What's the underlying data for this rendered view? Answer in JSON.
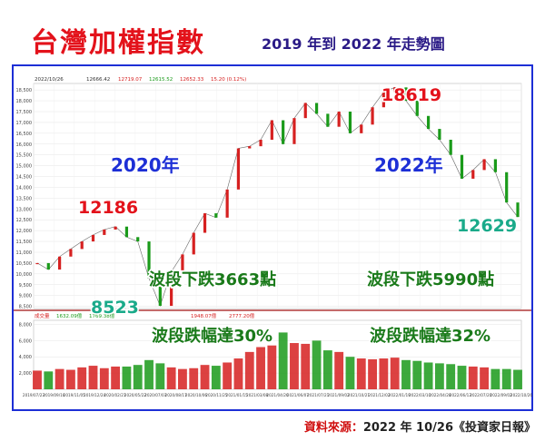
{
  "title": "台灣加權指數",
  "subtitle": "2019 年到 2022 年走勢圖",
  "source_label": "資料來源：",
  "source_value": "2022 年 10/26《投資家日報》",
  "chart_data": {
    "type": "line",
    "title": "台灣加權指數",
    "info_bar": [
      "2022/10/26",
      "12666.42",
      "12719.07",
      "12615.52",
      "12652.33",
      "15.20 (0.12%)"
    ],
    "volume_bar": [
      "成交量",
      "1632.09億",
      "1769.38億",
      "1948.07億",
      "2777.20億"
    ],
    "y_ticks": [
      "18,500",
      "18,000",
      "17,500",
      "17,000",
      "16,500",
      "16,000",
      "15,500",
      "15,000",
      "14,500",
      "14,000",
      "13,500",
      "13,000",
      "12,500",
      "12,000",
      "11,500",
      "11,000",
      "10,500",
      "10,000",
      "9,500",
      "9,000",
      "8,500"
    ],
    "ylim": [
      8400,
      18800
    ],
    "vol_ticks": [
      "8,000",
      "6,000",
      "4,000",
      "2,000"
    ],
    "vol_ylim": [
      0,
      8500
    ],
    "x_ticks": [
      "2019/07/23",
      "2019/09/16",
      "2019/11/05",
      "2019/12/24",
      "2020/02/21",
      "2020/05/22",
      "2020/07/03",
      "2020/08/17",
      "2020/10/06",
      "2020/11/25",
      "2021/01/15",
      "2021/03/08",
      "2021/04/26",
      "2021/06/07",
      "2021/07/21",
      "2021/09/02",
      "2021/10/21",
      "2021/12/02",
      "2022/01/19",
      "2022/03/10",
      "2022/04/28",
      "2022/06/13",
      "2022/07/20",
      "2022/09/02",
      "2022/10/26"
    ],
    "series": [
      {
        "x": [
          "2019/07/23",
          "2019/08/15",
          "2019/09/16",
          "2019/10/15",
          "2019/11/05",
          "2019/12/05",
          "2019/12/24",
          "2020/01/14",
          "2020/02/05",
          "2020/02/21",
          "2020/03/10",
          "2020/03/19",
          "2020/04/10",
          "2020/05/22",
          "2020/07/03",
          "2020/08/17",
          "2020/10/06",
          "2020/11/25",
          "2021/01/15",
          "2021/02/18",
          "2021/03/08",
          "2021/04/26",
          "2021/05/12",
          "2021/06/07",
          "2021/07/15",
          "2021/07/21",
          "2021/08/20",
          "2021/09/02",
          "2021/10/05",
          "2021/10/21",
          "2021/12/02",
          "2022/01/05",
          "2022/01/19",
          "2022/02/15",
          "2022/03/10",
          "2022/04/28",
          "2022/05/12",
          "2022/06/13",
          "2022/07/05",
          "2022/07/20",
          "2022/08/16",
          "2022/09/02",
          "2022/09/30",
          "2022/10/26"
        ],
        "values": [
          10500,
          10200,
          10800,
          11150,
          11500,
          11800,
          12050,
          12186,
          11700,
          11500,
          9800,
          8523,
          10100,
          10900,
          11900,
          12800,
          12600,
          13900,
          15800,
          15900,
          16200,
          17100,
          16000,
          17200,
          17900,
          17400,
          16800,
          17500,
          16500,
          16900,
          17700,
          18400,
          18619,
          18000,
          17300,
          16700,
          16200,
          15500,
          14400,
          14800,
          15300,
          14700,
          13300,
          12629
        ]
      }
    ],
    "volume": [
      2300,
      2200,
      2500,
      2400,
      2700,
      2900,
      2600,
      2800,
      2800,
      3000,
      3600,
      3200,
      2700,
      2500,
      2600,
      3000,
      2900,
      3300,
      3800,
      4600,
      5200,
      5400,
      7000,
      5700,
      5600,
      6000,
      4800,
      4600,
      4000,
      3800,
      3700,
      3800,
      3900,
      3600,
      3500,
      3300,
      3200,
      3100,
      2900,
      2800,
      2700,
      2500,
      2500,
      2400
    ],
    "annotations": {
      "year_2020": "2020年",
      "year_2022": "2022年",
      "high_2020": "12186",
      "low_2020": "8523",
      "high_2022": "18619",
      "low_2022": "12629",
      "drop_2020": "波段下跌3663點",
      "pct_2020": "波段跌幅達30%",
      "drop_2022": "波段下跌5990點",
      "pct_2022": "波段跌幅達32%"
    },
    "grid": true
  },
  "colors": {
    "title": "#e3121b",
    "subtitle": "#2a1a86",
    "year_text": "#1d2fd6",
    "high_text": "#e3121b",
    "low_text": "#1aaa8a",
    "wave_text": "#1a7a1a",
    "frame": "#1d2fd6",
    "up": "#d62020",
    "down": "#1a9a1a"
  }
}
